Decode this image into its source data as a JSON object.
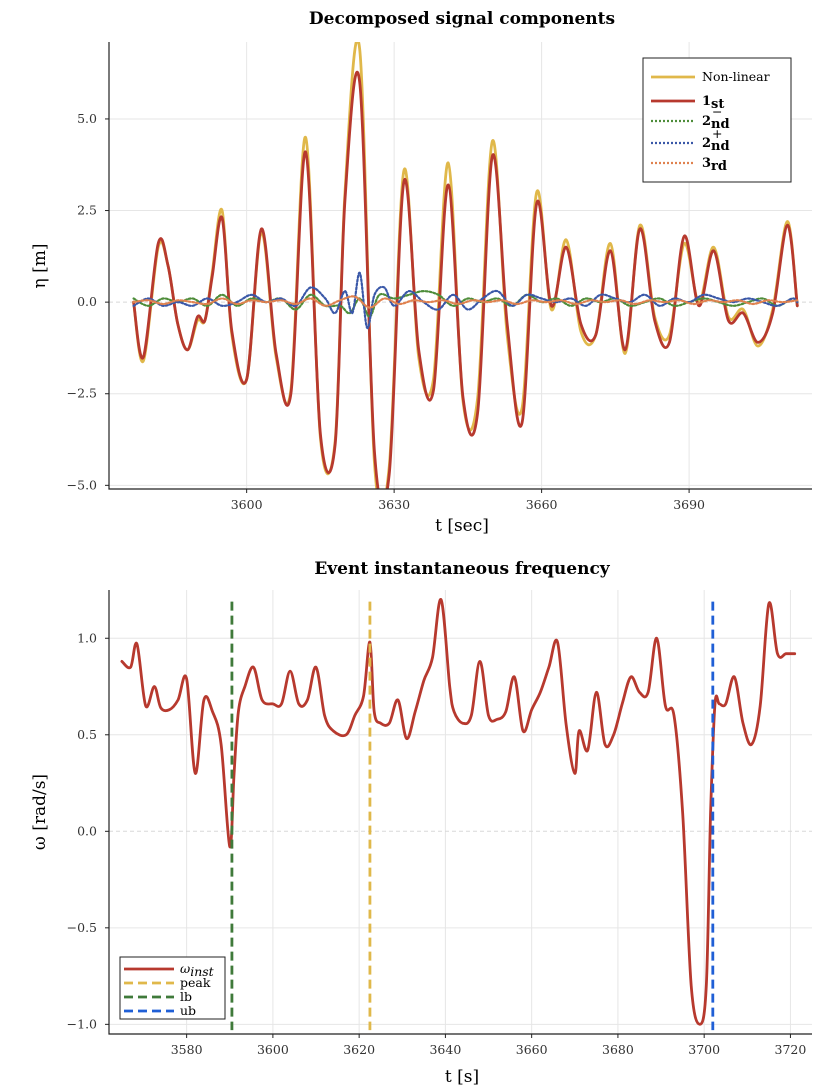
{
  "chart_data": [
    {
      "type": "line",
      "title": "Decomposed signal components",
      "xlabel": "t [sec]",
      "ylabel": "η [m]",
      "xlim": [
        3572,
        3715
      ],
      "ylim": [
        -5.1,
        7.1
      ],
      "xticks": [
        3600,
        3630,
        3660,
        3690
      ],
      "xtick_labels": [
        "3600",
        "3630",
        "3660",
        "3690"
      ],
      "yticks": [
        -5.0,
        -2.5,
        0.0,
        2.5,
        5.0
      ],
      "ytick_labels": [
        "−5.0",
        "−2.5",
        "0.0",
        "2.5",
        "5.0"
      ],
      "grid": true,
      "legend_position": "top-right",
      "legend": [
        {
          "main": "Non-linear",
          "sub": "",
          "sup": ""
        },
        {
          "main": "1",
          "sub": "st",
          "sup": ""
        },
        {
          "main": "2",
          "sub": "nd",
          "sup": "−"
        },
        {
          "main": "2",
          "sub": "nd",
          "sup": "+"
        },
        {
          "main": "3",
          "sub": "rd",
          "sup": ""
        }
      ],
      "series": [
        {
          "color": "#e0b84a",
          "width": 2.8,
          "dash": "",
          "x": [
            3577,
            3579,
            3582,
            3584,
            3586,
            3588,
            3590,
            3591.5,
            3593,
            3595,
            3597,
            3600,
            3603,
            3606,
            3609,
            3612,
            3615,
            3618,
            3620,
            3623,
            3626,
            3629,
            3632,
            3635,
            3638,
            3641,
            3644,
            3647,
            3650,
            3653,
            3656,
            3659,
            3662,
            3665,
            3668,
            3671,
            3674,
            3677,
            3680,
            3683,
            3686,
            3689,
            3692,
            3695,
            3698,
            3701,
            3704,
            3707,
            3710,
            3712
          ],
          "values": [
            0.0,
            -1.6,
            1.5,
            1.0,
            -0.6,
            -1.3,
            -0.5,
            -0.5,
            0.8,
            2.5,
            -0.9,
            -2.1,
            1.9,
            -1.5,
            -2.4,
            4.5,
            -3.7,
            -3.8,
            3.0,
            6.9,
            -4.4,
            -4.5,
            3.6,
            -1.5,
            -2.1,
            3.8,
            -2.7,
            -2.6,
            4.4,
            -0.9,
            -2.9,
            3.0,
            -0.2,
            1.7,
            -0.8,
            -0.9,
            1.6,
            -1.4,
            2.1,
            -0.4,
            -0.9,
            1.6,
            0.0,
            1.5,
            -0.4,
            -0.2,
            -1.2,
            -0.2,
            2.2,
            -0.1
          ]
        },
        {
          "color": "#b7392e",
          "width": 2.8,
          "dash": "",
          "x": [
            3577,
            3579,
            3582,
            3584,
            3586,
            3588,
            3590,
            3591.5,
            3593,
            3595,
            3597,
            3600,
            3603,
            3606,
            3609,
            3612,
            3615,
            3618,
            3620,
            3623,
            3626,
            3629,
            3632,
            3635,
            3638,
            3641,
            3644,
            3647,
            3650,
            3653,
            3656,
            3659,
            3662,
            3665,
            3668,
            3671,
            3674,
            3677,
            3680,
            3683,
            3686,
            3689,
            3692,
            3695,
            3698,
            3701,
            3704,
            3707,
            3710,
            3712
          ],
          "values": [
            0.0,
            -1.5,
            1.6,
            1.0,
            -0.6,
            -1.3,
            -0.4,
            -0.5,
            0.7,
            2.3,
            -0.8,
            -2.1,
            2.0,
            -1.4,
            -2.5,
            4.1,
            -3.6,
            -3.9,
            2.8,
            6.0,
            -4.1,
            -4.7,
            3.3,
            -1.3,
            -2.4,
            3.2,
            -2.6,
            -3.0,
            4.0,
            -0.6,
            -3.3,
            2.7,
            -0.1,
            1.5,
            -0.6,
            -0.9,
            1.4,
            -1.3,
            2.0,
            -0.5,
            -1.1,
            1.8,
            -0.1,
            1.4,
            -0.5,
            -0.3,
            -1.1,
            -0.3,
            2.1,
            -0.1
          ]
        },
        {
          "color": "#4e8d3a",
          "width": 2.2,
          "dash": "2 2",
          "x": [
            3577,
            3580,
            3583,
            3586,
            3589,
            3592,
            3595,
            3598,
            3601,
            3604,
            3607,
            3610,
            3613,
            3616,
            3619,
            3621,
            3623,
            3625,
            3627,
            3630,
            3633,
            3636,
            3639,
            3642,
            3645,
            3648,
            3651,
            3654,
            3657,
            3660,
            3663,
            3666,
            3669,
            3672,
            3675,
            3678,
            3681,
            3684,
            3687,
            3690,
            3693,
            3696,
            3699,
            3702,
            3705,
            3708,
            3711,
            3712
          ],
          "values": [
            0.1,
            -0.1,
            0.1,
            0.0,
            0.1,
            -0.1,
            0.2,
            -0.1,
            0.1,
            0.0,
            0.1,
            -0.2,
            0.2,
            -0.1,
            -0.1,
            -0.3,
            0.1,
            -0.4,
            0.2,
            0.1,
            0.2,
            0.3,
            0.2,
            -0.1,
            0.1,
            0.0,
            0.1,
            -0.1,
            0.2,
            0.0,
            0.1,
            -0.1,
            0.1,
            0.0,
            0.1,
            -0.1,
            0.0,
            0.1,
            -0.1,
            0.0,
            0.1,
            0.0,
            -0.1,
            0.0,
            0.1,
            -0.1,
            0.1,
            0.0
          ]
        },
        {
          "color": "#3a58a8",
          "width": 2.2,
          "dash": "2 2",
          "x": [
            3577,
            3580,
            3583,
            3586,
            3589,
            3592,
            3595,
            3598,
            3601,
            3604,
            3607,
            3610,
            3613,
            3616,
            3618,
            3620,
            3621.5,
            3623,
            3624.5,
            3626,
            3628,
            3630,
            3633,
            3636,
            3639,
            3642,
            3645,
            3648,
            3651,
            3654,
            3657,
            3660,
            3663,
            3666,
            3669,
            3672,
            3675,
            3678,
            3681,
            3684,
            3687,
            3690,
            3693,
            3696,
            3699,
            3702,
            3705,
            3708,
            3711,
            3712
          ],
          "values": [
            -0.1,
            0.1,
            -0.1,
            0.0,
            -0.1,
            0.1,
            -0.1,
            0.0,
            0.2,
            0.0,
            0.1,
            -0.1,
            0.4,
            0.1,
            -0.3,
            0.3,
            -0.3,
            0.8,
            -0.7,
            0.2,
            0.4,
            -0.1,
            0.3,
            0.0,
            -0.2,
            0.2,
            -0.2,
            0.1,
            0.3,
            -0.1,
            0.2,
            0.1,
            0.0,
            0.1,
            -0.1,
            0.2,
            0.1,
            0.0,
            0.2,
            -0.1,
            0.1,
            0.0,
            0.2,
            0.1,
            0.0,
            0.1,
            0.0,
            -0.1,
            0.1,
            0.0
          ]
        },
        {
          "color": "#e0824f",
          "width": 2.2,
          "dash": "2 2",
          "x": [
            3577,
            3580,
            3583,
            3586,
            3589,
            3592,
            3595,
            3598,
            3601,
            3604,
            3607,
            3610,
            3613,
            3616,
            3619,
            3622,
            3625,
            3628,
            3631,
            3634,
            3637,
            3640,
            3643,
            3646,
            3649,
            3652,
            3655,
            3658,
            3661,
            3664,
            3667,
            3670,
            3673,
            3676,
            3679,
            3682,
            3685,
            3688,
            3691,
            3694,
            3697,
            3700,
            3703,
            3706,
            3709,
            3712
          ],
          "values": [
            0.0,
            0.05,
            -0.05,
            0.05,
            0.0,
            -0.05,
            0.1,
            -0.05,
            0.05,
            0.0,
            0.05,
            -0.05,
            0.1,
            -0.1,
            0.05,
            0.15,
            -0.15,
            0.1,
            -0.05,
            0.05,
            0.0,
            0.05,
            -0.05,
            0.05,
            0.0,
            0.05,
            -0.05,
            0.05,
            0.0,
            0.05,
            -0.05,
            0.05,
            0.0,
            0.05,
            -0.05,
            0.05,
            0.0,
            0.05,
            -0.05,
            0.05,
            0.0,
            0.05,
            -0.05,
            0.05,
            0.0,
            0.05
          ]
        }
      ]
    },
    {
      "type": "line",
      "title": "Event instantaneous frequency",
      "xlabel": "t [s]",
      "ylabel": "ω [rad/s]",
      "xlim": [
        3562,
        3725
      ],
      "ylim": [
        -1.05,
        1.25
      ],
      "xticks": [
        3580,
        3600,
        3620,
        3640,
        3660,
        3680,
        3700,
        3720
      ],
      "xtick_labels": [
        "3580",
        "3600",
        "3620",
        "3640",
        "3660",
        "3680",
        "3700",
        "3720"
      ],
      "yticks": [
        -1.0,
        -0.5,
        0.0,
        0.5,
        1.0
      ],
      "ytick_labels": [
        "−1.0",
        "−0.5",
        "0.0",
        "0.5",
        "1.0"
      ],
      "grid": true,
      "legend_position": "bottom-left",
      "legend": [
        {
          "main": "ω",
          "sub": "inst",
          "sup": ""
        },
        {
          "main": "peak",
          "sub": "",
          "sup": ""
        },
        {
          "main": "lb",
          "sub": "",
          "sup": ""
        },
        {
          "main": "ub",
          "sub": "",
          "sup": ""
        }
      ],
      "series": [
        {
          "color": "#b7392e",
          "width": 2.8,
          "dash": "",
          "x": [
            3565,
            3567,
            3568.5,
            3570.5,
            3572.5,
            3574,
            3576,
            3578,
            3580,
            3582,
            3584,
            3586,
            3588,
            3590,
            3591,
            3592,
            3593.5,
            3595.5,
            3597.5,
            3600,
            3602,
            3604,
            3606,
            3608,
            3610,
            3612,
            3614,
            3617,
            3619,
            3621,
            3622.5,
            3623.5,
            3625,
            3627,
            3629,
            3631,
            3633,
            3635,
            3637,
            3639,
            3641,
            3642,
            3644,
            3646,
            3648,
            3650,
            3652,
            3654,
            3656,
            3658,
            3660,
            3662,
            3664,
            3666,
            3668,
            3670,
            3671,
            3673,
            3675,
            3677,
            3679,
            3681,
            3683,
            3685,
            3687,
            3689,
            3691,
            3693,
            3695,
            3697,
            3699,
            3700.5,
            3701.5,
            3702.5,
            3703.5,
            3705,
            3707,
            3709,
            3711,
            3713,
            3715,
            3717,
            3719,
            3721
          ],
          "values": [
            0.88,
            0.85,
            0.97,
            0.65,
            0.75,
            0.64,
            0.63,
            0.68,
            0.79,
            0.3,
            0.68,
            0.62,
            0.45,
            -0.08,
            0.3,
            0.62,
            0.75,
            0.85,
            0.68,
            0.66,
            0.66,
            0.83,
            0.66,
            0.68,
            0.85,
            0.6,
            0.52,
            0.5,
            0.6,
            0.7,
            0.98,
            0.62,
            0.56,
            0.56,
            0.68,
            0.48,
            0.62,
            0.78,
            0.9,
            1.2,
            0.75,
            0.62,
            0.56,
            0.6,
            0.88,
            0.6,
            0.58,
            0.62,
            0.8,
            0.52,
            0.63,
            0.72,
            0.85,
            0.98,
            0.55,
            0.3,
            0.52,
            0.42,
            0.72,
            0.45,
            0.5,
            0.66,
            0.8,
            0.72,
            0.72,
            1.0,
            0.65,
            0.6,
            0.1,
            -0.8,
            -1.0,
            -0.8,
            0.1,
            0.66,
            0.66,
            0.66,
            0.8,
            0.56,
            0.45,
            0.65,
            1.18,
            0.92,
            0.92,
            0.92
          ]
        }
      ],
      "vlines": [
        {
          "name": "peak",
          "x": 3622.5,
          "color": "#e0b84a"
        },
        {
          "name": "lb",
          "x": 3590.5,
          "color": "#3f7a3a"
        },
        {
          "name": "ub",
          "x": 3702,
          "color": "#1f5fd6"
        }
      ]
    }
  ]
}
